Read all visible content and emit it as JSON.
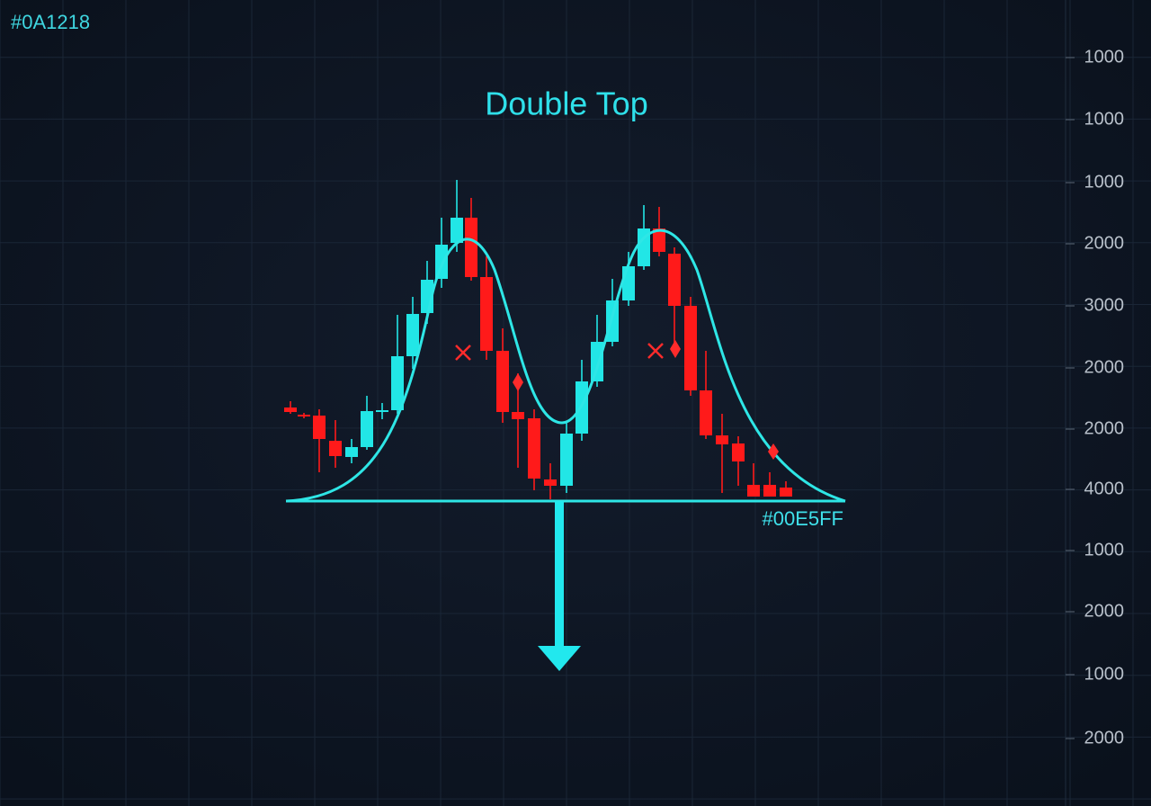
{
  "corner_label": "#0A1218",
  "title": "Double Top",
  "neckline_label": "#00E5FF",
  "axis_labels": [
    "1000",
    "1000",
    "1000",
    "2000",
    "3000",
    "2000",
    "2000",
    "4000",
    "1000",
    "2000",
    "1000",
    "2000"
  ]
}
